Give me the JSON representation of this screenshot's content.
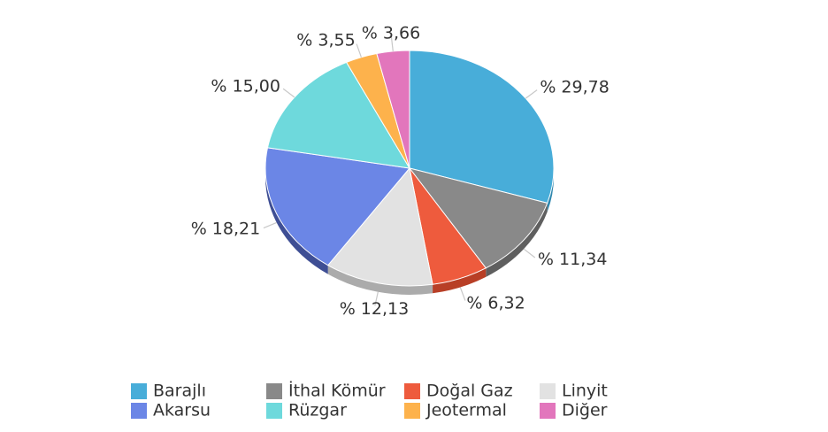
{
  "chart_data": {
    "type": "pie",
    "title": "",
    "legend": "bottom",
    "slices": [
      {
        "label": "Barajlı",
        "value": 29.78,
        "display": "% 29,78",
        "color": "#48ADD9",
        "side": "#2F87AE"
      },
      {
        "label": "İthal Kömür",
        "value": 11.34,
        "display": "% 11,34",
        "color": "#898989",
        "side": "#5F5F5F"
      },
      {
        "label": "Doğal Gaz",
        "value": 6.32,
        "display": "% 6,32",
        "color": "#EE5B3D",
        "side": "#B83F26"
      },
      {
        "label": "Linyit",
        "value": 12.13,
        "display": "% 12,13",
        "color": "#E2E2E2",
        "side": "#ABABAB"
      },
      {
        "label": "Akarsu",
        "value": 18.21,
        "display": "% 18,21",
        "color": "#6B86E6",
        "side": "#3E4E94"
      },
      {
        "label": "Rüzgar",
        "value": 15.0,
        "display": "% 15,00",
        "color": "#6ED9DC",
        "side": "#45A6A9"
      },
      {
        "label": "Jeotermal",
        "value": 3.55,
        "display": "% 3,55",
        "color": "#FDB24C",
        "side": "#C9852C"
      },
      {
        "label": "Diğer",
        "value": 3.66,
        "display": "% 3,66",
        "color": "#E276BC",
        "side": "#AF4F8D"
      }
    ],
    "legend_order": [
      "Barajlı",
      "İthal Kömür",
      "Doğal Gaz",
      "Linyit",
      "Akarsu",
      "Rüzgar",
      "Jeotermal",
      "Diğer"
    ]
  }
}
